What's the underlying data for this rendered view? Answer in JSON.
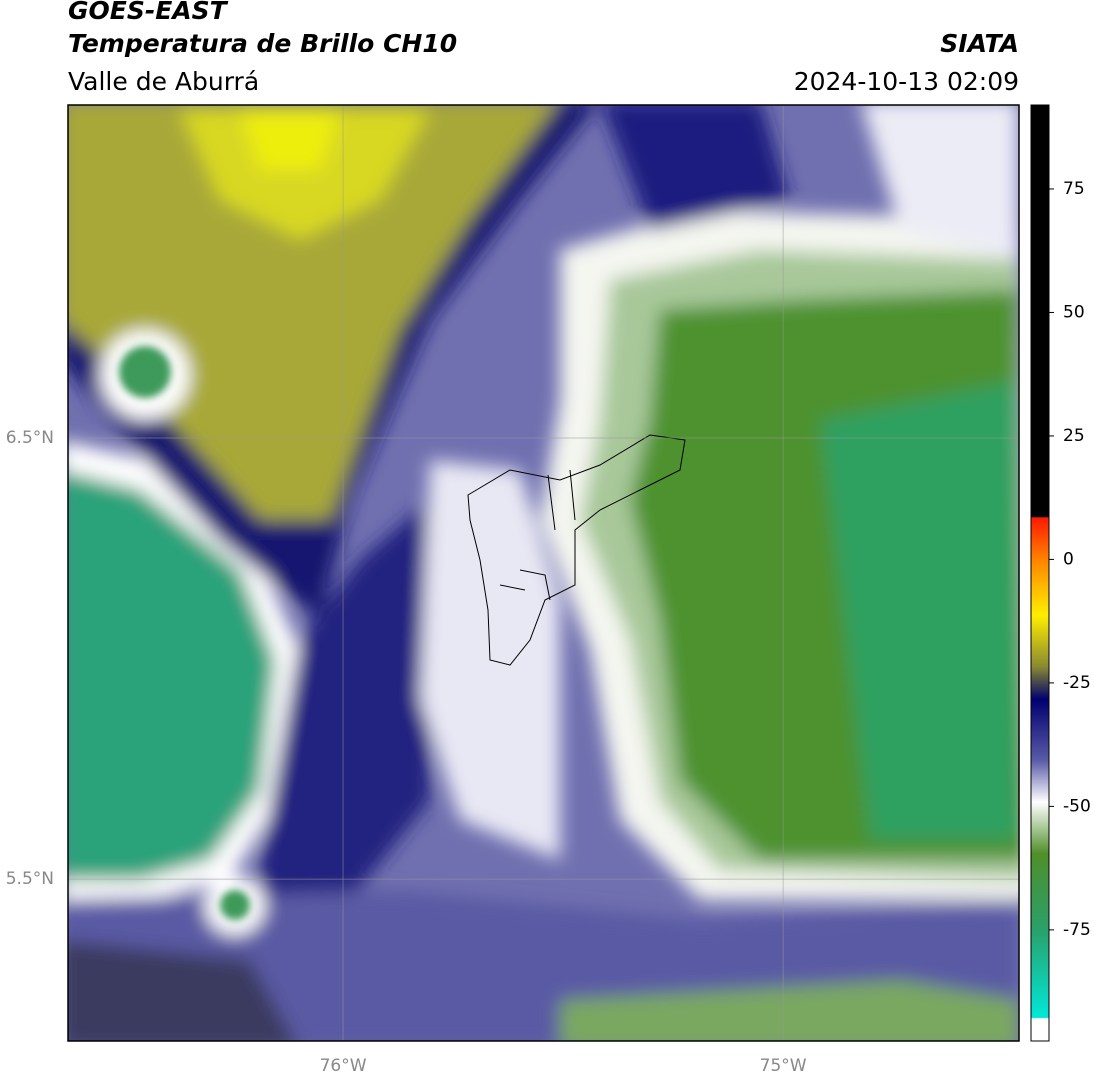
{
  "header": {
    "line1": "GOES-EAST",
    "title": "Temperatura de Brillo CH10",
    "subtitle": "Valle de Aburrá",
    "source": "SIATA",
    "datetime": "2024-10-13 02:09"
  },
  "map": {
    "xlim": [
      -76.625,
      -74.464
    ],
    "ylim": [
      5.133,
      7.255
    ],
    "xticks": [
      {
        "value": -76,
        "label": "76°W"
      },
      {
        "value": -75,
        "label": "75°W"
      }
    ],
    "yticks": [
      {
        "value": 6.5,
        "label": "6.5°N"
      },
      {
        "value": 5.5,
        "label": "5.5°N"
      }
    ]
  },
  "colorbar": {
    "lim": [
      -97.5,
      92
    ],
    "ticks": [
      75,
      50,
      25,
      0,
      -25,
      -50,
      -75
    ]
  }
}
